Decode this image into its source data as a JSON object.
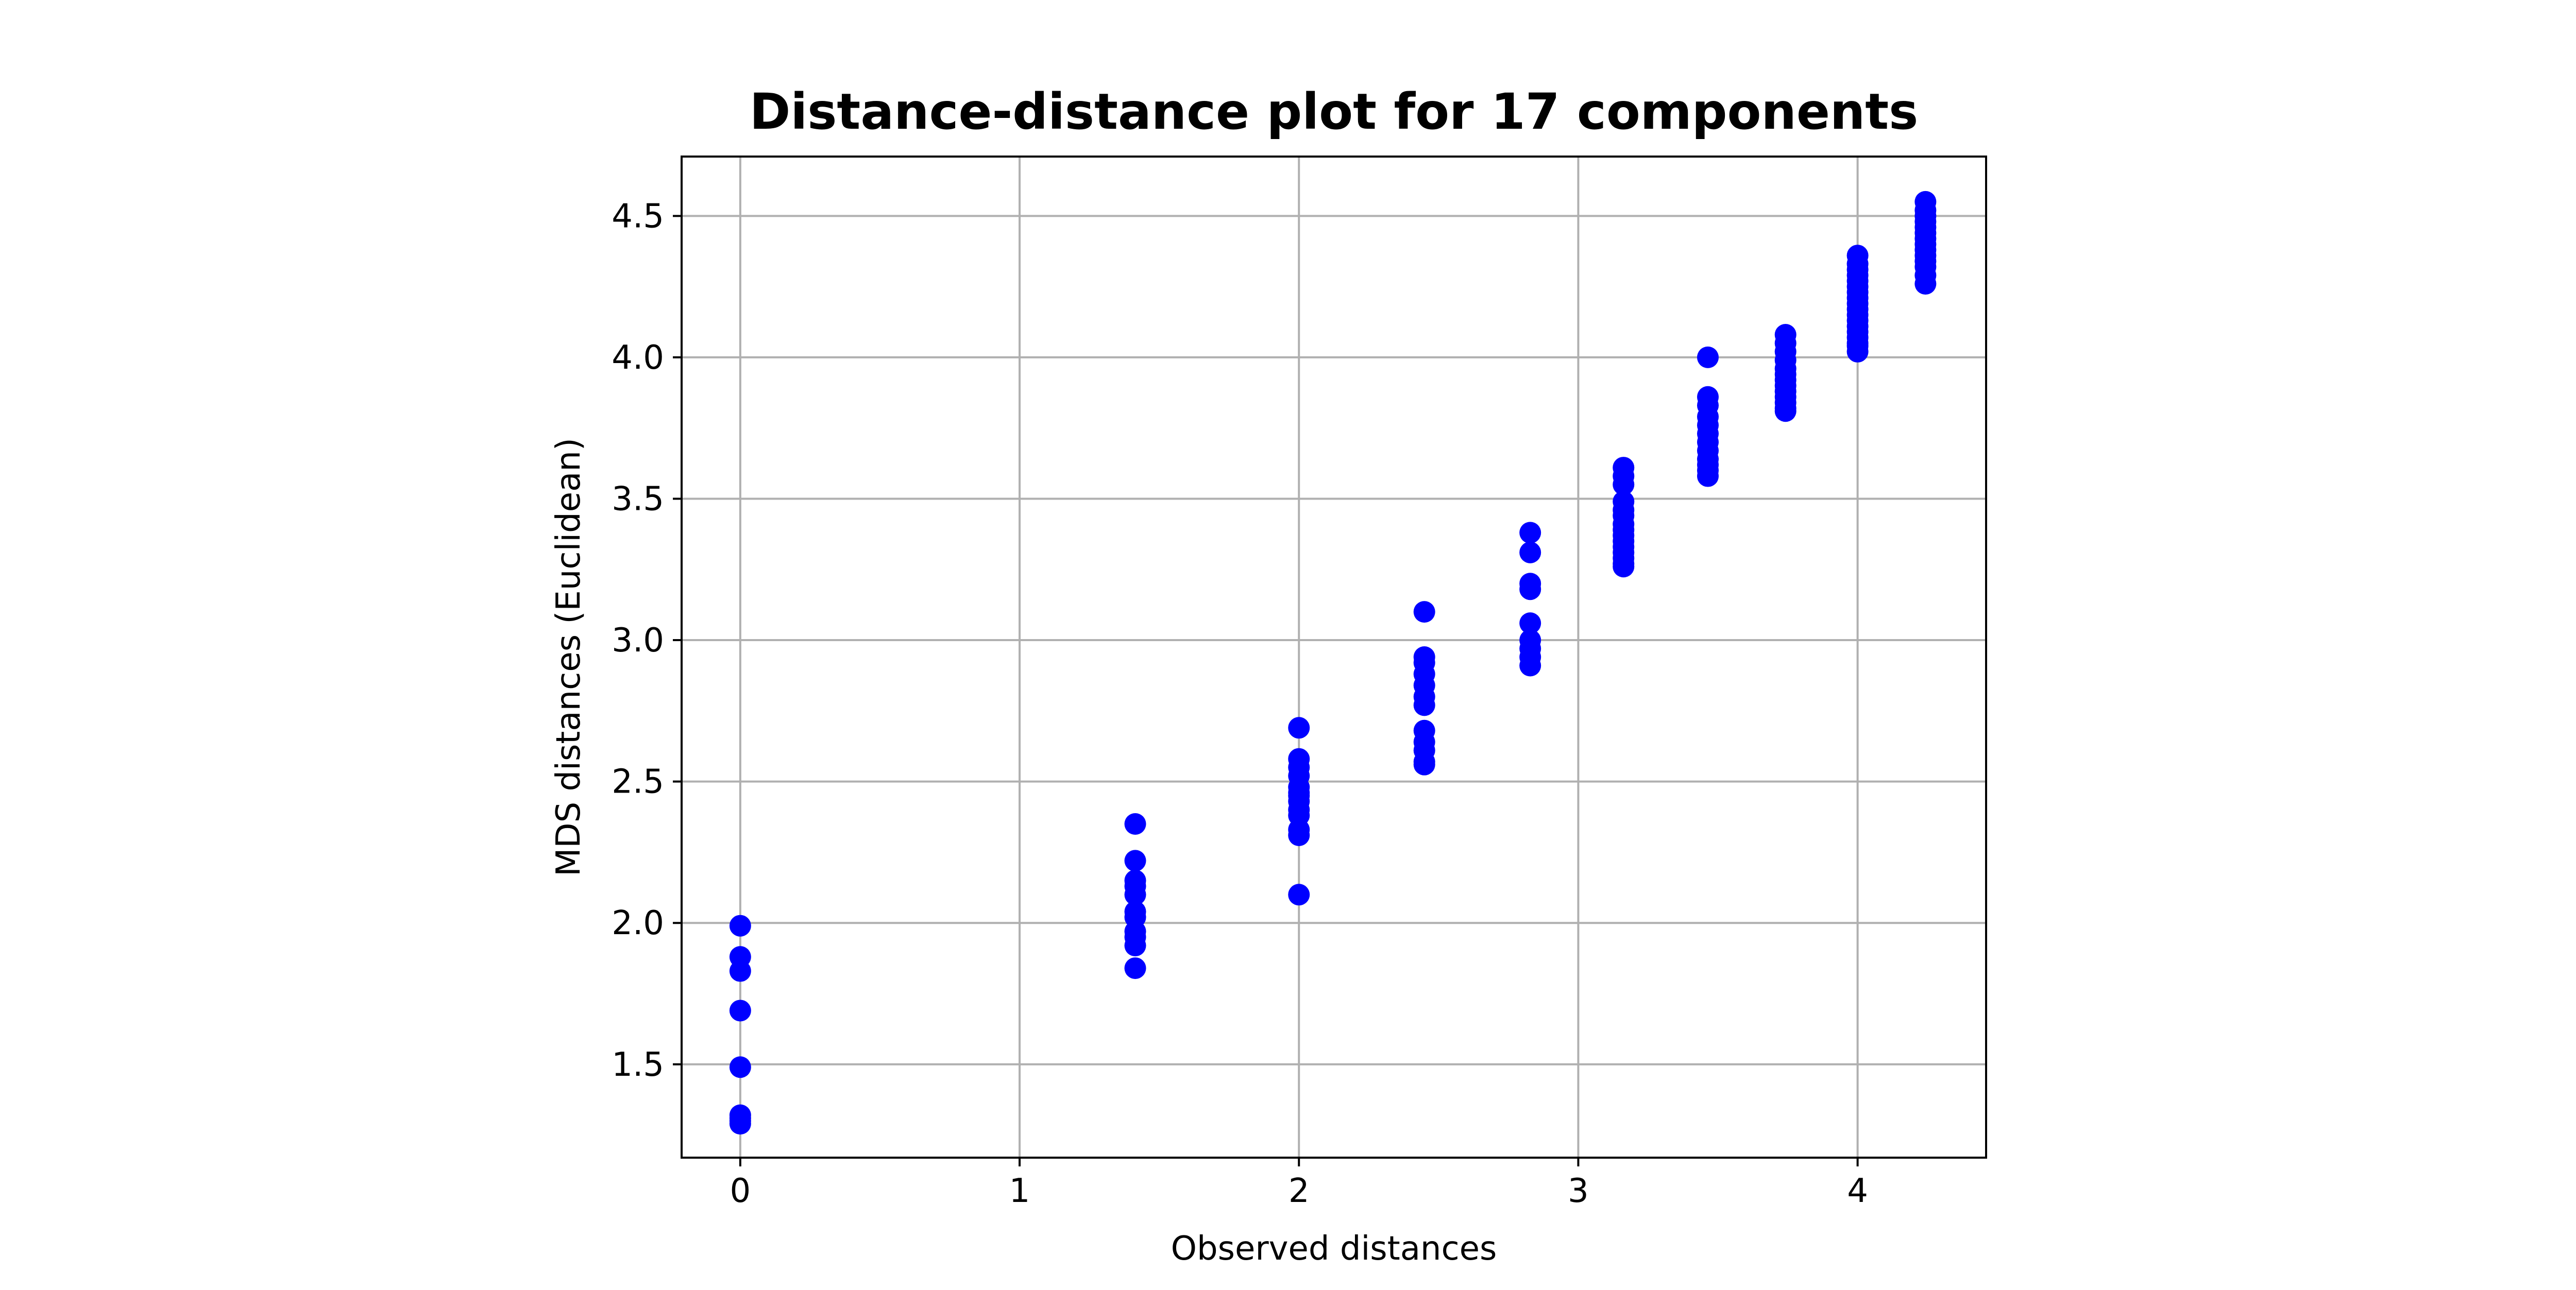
{
  "chart_data": {
    "type": "scatter",
    "title": "Distance-distance plot for 17 components",
    "xlabel": "Observed distances",
    "ylabel": "MDS distances (Euclidean)",
    "xlim": [
      -0.21,
      4.46
    ],
    "ylim": [
      1.17,
      4.71
    ],
    "xticks": [
      0,
      1,
      2,
      3,
      4
    ],
    "xtick_labels": [
      "0",
      "1",
      "2",
      "3",
      "4"
    ],
    "yticks": [
      1.5,
      2.0,
      2.5,
      3.0,
      3.5,
      4.0,
      4.5
    ],
    "ytick_labels": [
      "1.5",
      "2.0",
      "2.5",
      "3.0",
      "3.5",
      "4.0",
      "4.5"
    ],
    "grid": true,
    "marker_color": "#0000ff",
    "series": [
      {
        "x": [
          0,
          0,
          0,
          0,
          0,
          0,
          0,
          0,
          0,
          1.414,
          1.414,
          1.414,
          1.414,
          1.414,
          1.414,
          1.414,
          1.414,
          1.414,
          1.414,
          1.414,
          2,
          2,
          2,
          2,
          2,
          2,
          2,
          2,
          2,
          2,
          2,
          2,
          2,
          2.449,
          2.449,
          2.449,
          2.449,
          2.449,
          2.449,
          2.449,
          2.449,
          2.449,
          2.449,
          2.449,
          2.449,
          2.828,
          2.828,
          2.828,
          2.828,
          2.828,
          2.828,
          2.828,
          2.828,
          2.828,
          3.162,
          3.162,
          3.162,
          3.162,
          3.162,
          3.162,
          3.162,
          3.162,
          3.162,
          3.162,
          3.162,
          3.162,
          3.162,
          3.162,
          3.162,
          3.464,
          3.464,
          3.464,
          3.464,
          3.464,
          3.464,
          3.464,
          3.464,
          3.464,
          3.464,
          3.464,
          3.464,
          3.742,
          3.742,
          3.742,
          3.742,
          3.742,
          3.742,
          3.742,
          3.742,
          3.742,
          3.742,
          3.742,
          3.742,
          3.742,
          4,
          4,
          4,
          4,
          4,
          4,
          4,
          4,
          4,
          4,
          4,
          4,
          4,
          4,
          4,
          4,
          4,
          4,
          4.243,
          4.243,
          4.243,
          4.243,
          4.243,
          4.243,
          4.243,
          4.243,
          4.243,
          4.243,
          4.243,
          4.243,
          4.243,
          4.243
        ],
        "y": [
          1.99,
          1.88,
          1.83,
          1.69,
          1.49,
          1.32,
          1.3,
          1.29,
          1.31,
          2.35,
          2.22,
          2.15,
          2.13,
          2.1,
          2.04,
          2.02,
          1.97,
          1.95,
          1.92,
          1.84,
          2.69,
          2.58,
          2.55,
          2.52,
          2.48,
          2.46,
          2.45,
          2.43,
          2.4,
          2.38,
          2.33,
          2.31,
          2.1,
          3.1,
          2.94,
          2.92,
          2.88,
          2.84,
          2.8,
          2.77,
          2.68,
          2.64,
          2.61,
          2.57,
          2.56,
          3.38,
          3.31,
          3.2,
          3.18,
          3.06,
          3.0,
          2.97,
          2.94,
          2.91,
          3.61,
          3.58,
          3.55,
          3.49,
          3.46,
          3.44,
          3.41,
          3.39,
          3.37,
          3.35,
          3.33,
          3.31,
          3.29,
          3.27,
          3.26,
          4.0,
          3.86,
          3.83,
          3.79,
          3.76,
          3.73,
          3.7,
          3.67,
          3.64,
          3.62,
          3.6,
          3.58,
          4.08,
          4.05,
          4.02,
          3.99,
          3.96,
          3.94,
          3.92,
          3.9,
          3.88,
          3.86,
          3.84,
          3.82,
          3.81,
          4.36,
          4.33,
          4.31,
          4.29,
          4.27,
          4.25,
          4.23,
          4.21,
          4.19,
          4.17,
          4.15,
          4.13,
          4.11,
          4.09,
          4.07,
          4.05,
          4.04,
          4.02,
          4.55,
          4.52,
          4.5,
          4.48,
          4.46,
          4.44,
          4.42,
          4.4,
          4.38,
          4.36,
          4.34,
          4.32,
          4.29,
          4.26
        ]
      }
    ]
  }
}
